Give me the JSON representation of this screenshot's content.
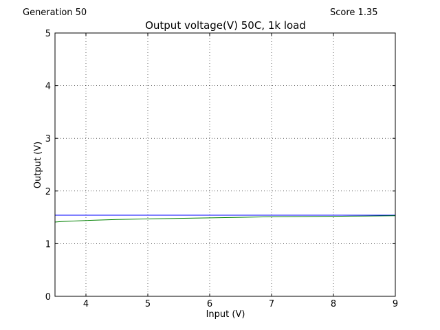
{
  "header": {
    "generation": "Generation 50",
    "score": "Score 1.35"
  },
  "chart_data": {
    "type": "line",
    "title": "Output voltage(V) 50C, 1k load",
    "xlabel": "Input (V)",
    "ylabel": "Output (V)",
    "xlim": [
      3.5,
      9
    ],
    "ylim": [
      0,
      5
    ],
    "xticks": [
      4,
      5,
      6,
      7,
      8,
      9
    ],
    "yticks": [
      0,
      1,
      2,
      3,
      4,
      5
    ],
    "grid": true,
    "grid_style": "dotted",
    "series": [
      {
        "color": "#0000ff",
        "x": [
          3.5,
          9.0
        ],
        "y": [
          1.54,
          1.54
        ]
      },
      {
        "color": "#008000",
        "x": [
          3.5,
          3.6,
          3.8,
          4.0,
          4.5,
          5.0,
          5.5,
          6.0,
          6.5,
          7.0,
          7.5,
          8.0,
          8.5,
          9.0
        ],
        "y": [
          1.41,
          1.42,
          1.43,
          1.44,
          1.46,
          1.47,
          1.48,
          1.49,
          1.5,
          1.51,
          1.515,
          1.52,
          1.525,
          1.53
        ]
      }
    ]
  }
}
